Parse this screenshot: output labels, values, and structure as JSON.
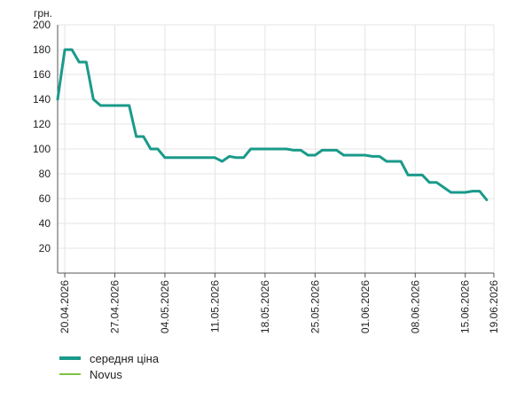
{
  "chart_data": {
    "type": "line",
    "ylabel": "грн.",
    "ylim": [
      0,
      200
    ],
    "yticks": [
      20,
      40,
      60,
      80,
      100,
      120,
      140,
      160,
      180,
      200
    ],
    "x_range": [
      "2026-04-19",
      "2026-06-19"
    ],
    "xticks": [
      "20.04.2026",
      "27.04.2026",
      "04.05.2026",
      "11.05.2026",
      "18.05.2026",
      "25.05.2026",
      "01.06.2026",
      "08.06.2026",
      "15.06.2026",
      "19.06.2026"
    ],
    "grid": "vertical and horizontal",
    "legend_position": "bottom-left",
    "series": [
      {
        "name": "середня ціна",
        "color": "#1a9a8a",
        "points": [
          [
            "2026-04-19",
            140
          ],
          [
            "2026-04-20",
            180
          ],
          [
            "2026-04-21",
            180
          ],
          [
            "2026-04-22",
            170
          ],
          [
            "2026-04-23",
            170
          ],
          [
            "2026-04-24",
            140
          ],
          [
            "2026-04-25",
            135
          ],
          [
            "2026-04-26",
            135
          ],
          [
            "2026-04-27",
            135
          ],
          [
            "2026-04-28",
            135
          ],
          [
            "2026-04-29",
            135
          ],
          [
            "2026-04-30",
            110
          ],
          [
            "2026-05-01",
            110
          ],
          [
            "2026-05-02",
            100
          ],
          [
            "2026-05-03",
            100
          ],
          [
            "2026-05-04",
            93
          ],
          [
            "2026-05-05",
            93
          ],
          [
            "2026-05-06",
            93
          ],
          [
            "2026-05-07",
            93
          ],
          [
            "2026-05-08",
            93
          ],
          [
            "2026-05-09",
            93
          ],
          [
            "2026-05-10",
            93
          ],
          [
            "2026-05-11",
            93
          ],
          [
            "2026-05-12",
            90
          ],
          [
            "2026-05-13",
            94
          ],
          [
            "2026-05-14",
            93
          ],
          [
            "2026-05-15",
            93
          ],
          [
            "2026-05-16",
            100
          ],
          [
            "2026-05-17",
            100
          ],
          [
            "2026-05-18",
            100
          ],
          [
            "2026-05-19",
            100
          ],
          [
            "2026-05-20",
            100
          ],
          [
            "2026-05-21",
            100
          ],
          [
            "2026-05-22",
            99
          ],
          [
            "2026-05-23",
            99
          ],
          [
            "2026-05-24",
            95
          ],
          [
            "2026-05-25",
            95
          ],
          [
            "2026-05-26",
            99
          ],
          [
            "2026-05-27",
            99
          ],
          [
            "2026-05-28",
            99
          ],
          [
            "2026-05-29",
            95
          ],
          [
            "2026-05-30",
            95
          ],
          [
            "2026-05-31",
            95
          ],
          [
            "2026-06-01",
            95
          ],
          [
            "2026-06-02",
            94
          ],
          [
            "2026-06-03",
            94
          ],
          [
            "2026-06-04",
            90
          ],
          [
            "2026-06-05",
            90
          ],
          [
            "2026-06-06",
            90
          ],
          [
            "2026-06-07",
            79
          ],
          [
            "2026-06-08",
            79
          ],
          [
            "2026-06-09",
            79
          ],
          [
            "2026-06-10",
            73
          ],
          [
            "2026-06-11",
            73
          ],
          [
            "2026-06-12",
            69
          ],
          [
            "2026-06-13",
            65
          ],
          [
            "2026-06-14",
            65
          ],
          [
            "2026-06-15",
            65
          ],
          [
            "2026-06-16",
            66
          ],
          [
            "2026-06-17",
            66
          ],
          [
            "2026-06-18",
            59
          ]
        ]
      },
      {
        "name": "Novus",
        "color": "#7cc242",
        "points": []
      }
    ]
  }
}
